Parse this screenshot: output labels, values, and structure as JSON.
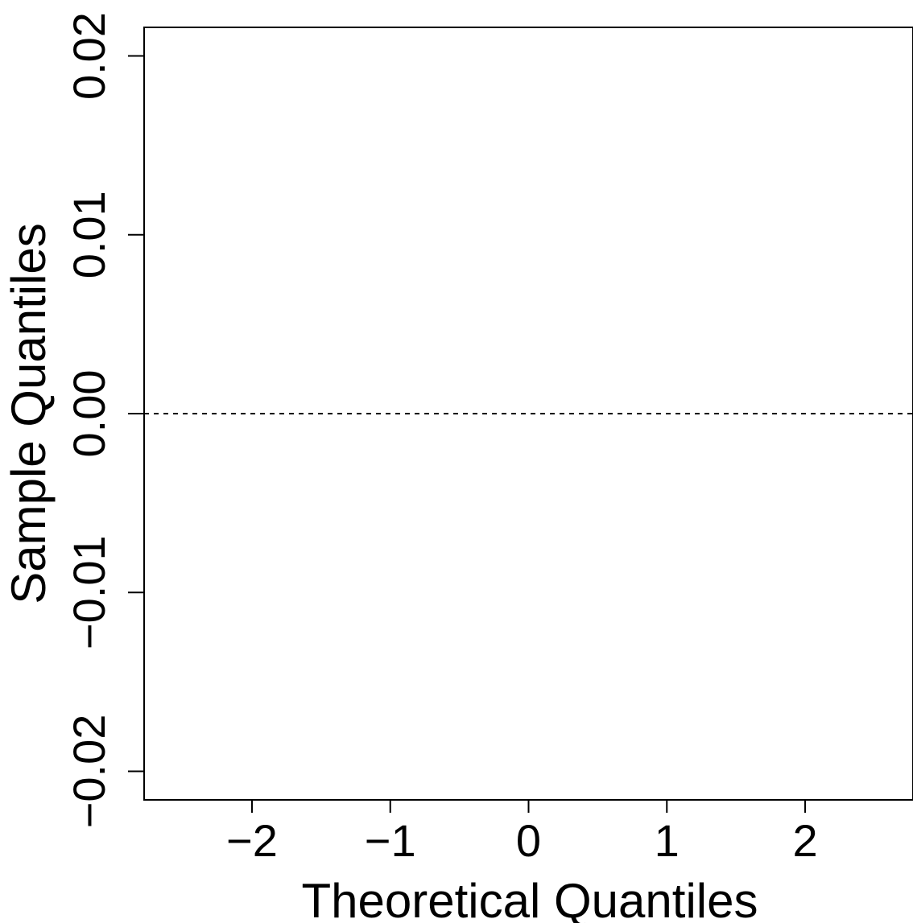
{
  "chart_data": {
    "type": "scatter",
    "title": "",
    "xlabel": "Theoretical Quantiles",
    "ylabel": "Sample Quantiles",
    "xlim": [
      -2.78,
      2.78
    ],
    "ylim": [
      -0.0216,
      0.0216
    ],
    "x_ticks": [
      -2,
      -1,
      0,
      1,
      2
    ],
    "x_tick_labels": [
      "−2",
      "−1",
      "0",
      "1",
      "2"
    ],
    "y_ticks": [
      -0.02,
      -0.01,
      0,
      0.01,
      0.02
    ],
    "y_tick_labels": [
      "−0.02",
      "−0.01",
      "0.00",
      "0.01",
      "0.02"
    ],
    "reference_line": {
      "y": 0,
      "style": "dashed"
    },
    "grid": false,
    "series": [
      {
        "values": []
      }
    ]
  }
}
